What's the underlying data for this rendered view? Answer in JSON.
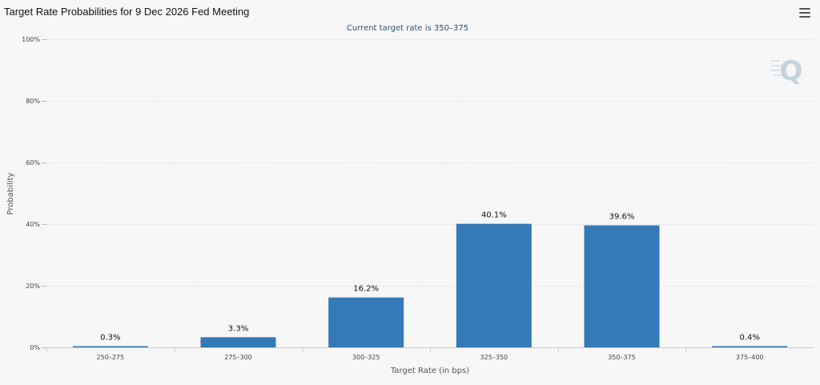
{
  "header": {
    "title": "Target Rate Probabilities for 9 Dec 2026 Fed Meeting",
    "menu_icon": "hamburger-menu-icon"
  },
  "chart_data": {
    "type": "bar",
    "title": "Target Rate Probabilities for 9 Dec 2026 Fed Meeting",
    "subtitle": "Current target rate is 350–375",
    "xlabel": "Target Rate (in bps)",
    "ylabel": "Probability",
    "categories": [
      "250–275",
      "275–300",
      "300–325",
      "325–350",
      "350–375",
      "375–400"
    ],
    "values": [
      0.3,
      3.3,
      16.2,
      40.1,
      39.6,
      0.4
    ],
    "data_labels": [
      "0.3%",
      "3.3%",
      "16.2%",
      "40.1%",
      "39.6%",
      "0.4%"
    ],
    "y_ticks": [
      "0%",
      "20%",
      "40%",
      "60%",
      "80%",
      "100%"
    ],
    "ylim": [
      0,
      100
    ],
    "grid": true,
    "legend": "none",
    "colors": {
      "bar": "#337ab7",
      "grid": "#d8d8d8",
      "axis": "#cccccc",
      "subtitle": "#2f4f6f",
      "watermark": "#cfd8e0"
    }
  }
}
